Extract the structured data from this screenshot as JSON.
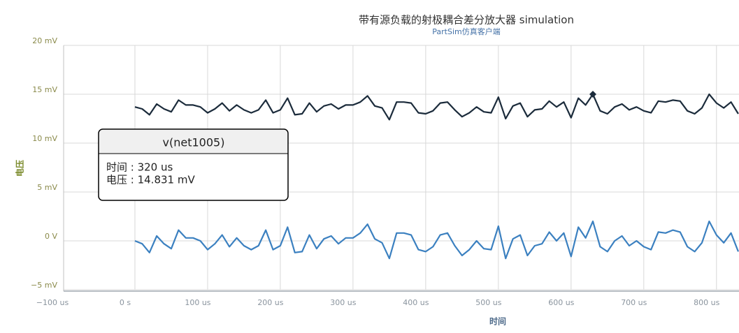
{
  "chart_data": {
    "type": "line",
    "title": "带有源负载的射极耦合差分放大器 simulation",
    "subtitle": "PartSim仿真客户端",
    "x_label": "时间",
    "y_label": "电压",
    "xlim": [
      -100,
      831
    ],
    "ylim": [
      -5,
      20
    ],
    "xticks": [
      {
        "value": -100,
        "label": "−100 us"
      },
      {
        "value": 0,
        "label": "0 s"
      },
      {
        "value": 100,
        "label": "100 us"
      },
      {
        "value": 200,
        "label": "200 us"
      },
      {
        "value": 300,
        "label": "300 us"
      },
      {
        "value": 400,
        "label": "400 us"
      },
      {
        "value": 500,
        "label": "500 us"
      },
      {
        "value": 600,
        "label": "600 us"
      },
      {
        "value": 700,
        "label": "700 us"
      },
      {
        "value": 800,
        "label": "800 us"
      }
    ],
    "yticks": [
      {
        "value": -5,
        "label": "−5 mV"
      },
      {
        "value": 0,
        "label": "0 V"
      },
      {
        "value": 5,
        "label": "5 mV"
      },
      {
        "value": 10,
        "label": "10 mV"
      },
      {
        "value": 15,
        "label": "15 mV"
      },
      {
        "value": 20,
        "label": "20 mV"
      }
    ],
    "grid": true,
    "x": [
      0,
      10,
      20,
      30,
      40,
      50,
      60,
      70,
      80,
      90,
      100,
      110,
      120,
      130,
      140,
      150,
      160,
      170,
      180,
      190,
      200,
      210,
      220,
      230,
      240,
      250,
      260,
      270,
      280,
      290,
      300,
      310,
      320,
      330,
      340,
      350,
      360,
      370,
      380,
      390,
      400,
      410,
      420,
      430,
      440,
      450,
      460,
      470,
      480,
      490,
      500,
      510,
      520,
      530,
      540,
      550,
      560,
      570,
      580,
      590,
      600,
      610,
      620,
      630,
      640,
      650,
      660,
      670,
      680,
      690,
      700,
      710,
      720,
      730,
      740,
      750,
      760,
      770,
      780,
      790,
      800,
      810,
      820,
      830
    ],
    "series": [
      {
        "name": "v(net1005)",
        "color": "#1b2b3b",
        "values": [
          13.7,
          13.5,
          12.9,
          14.0,
          13.5,
          13.2,
          14.4,
          13.9,
          13.9,
          13.7,
          13.1,
          13.5,
          14.1,
          13.3,
          13.9,
          13.4,
          13.1,
          13.4,
          14.4,
          13.1,
          13.4,
          14.6,
          12.9,
          13.0,
          14.1,
          13.2,
          13.8,
          14.0,
          13.5,
          13.9,
          13.9,
          14.2,
          14.831,
          13.8,
          13.6,
          12.4,
          14.2,
          14.2,
          14.1,
          13.1,
          13.0,
          13.3,
          14.1,
          14.2,
          13.4,
          12.7,
          13.1,
          13.7,
          13.2,
          13.1,
          14.7,
          12.5,
          13.8,
          14.1,
          12.7,
          13.4,
          13.5,
          14.3,
          13.7,
          14.2,
          12.6,
          14.6,
          13.9,
          15.0,
          13.3,
          13.0,
          13.7,
          14.0,
          13.4,
          13.7,
          13.3,
          13.1,
          14.3,
          14.2,
          14.4,
          14.3,
          13.3,
          13.0,
          13.6,
          15.0,
          14.1,
          13.6,
          14.2,
          13.0
        ]
      },
      {
        "color": "#3b80c0",
        "values": [
          0.0,
          -0.3,
          -1.2,
          0.5,
          -0.3,
          -0.8,
          1.1,
          0.3,
          0.3,
          0.0,
          -0.9,
          -0.3,
          0.6,
          -0.6,
          0.3,
          -0.5,
          -0.9,
          -0.5,
          1.1,
          -0.9,
          -0.5,
          1.4,
          -1.2,
          -1.1,
          0.6,
          -0.8,
          0.2,
          0.5,
          -0.3,
          0.3,
          0.3,
          0.8,
          1.7,
          0.2,
          -0.2,
          -1.8,
          0.8,
          0.8,
          0.6,
          -0.9,
          -1.1,
          -0.6,
          0.6,
          0.8,
          -0.5,
          -1.5,
          -0.9,
          0.0,
          -0.8,
          -0.9,
          1.5,
          -1.8,
          0.2,
          0.6,
          -1.5,
          -0.5,
          -0.3,
          0.9,
          0.0,
          0.8,
          -1.6,
          1.4,
          0.3,
          2.0,
          -0.6,
          -1.1,
          0.0,
          0.5,
          -0.5,
          0.0,
          -0.6,
          -0.9,
          0.9,
          0.8,
          1.1,
          0.9,
          -0.6,
          -1.1,
          -0.2,
          2.0,
          0.6,
          -0.2,
          0.8,
          -1.1
        ]
      }
    ],
    "tooltip": {
      "title": "v(net1005)",
      "lines": [
        "时间 : 320 us",
        "电压 : 14.831 mV"
      ]
    }
  }
}
